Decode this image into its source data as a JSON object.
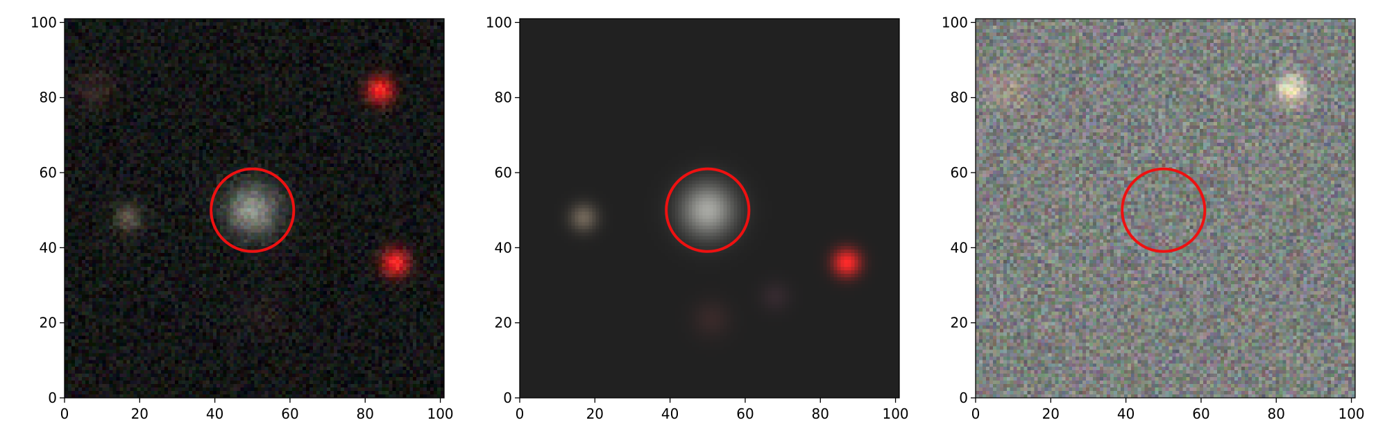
{
  "chart_data": [
    {
      "type": "image",
      "xlim": [
        0,
        101
      ],
      "ylim": [
        0,
        101
      ],
      "xticks": [
        0,
        20,
        40,
        60,
        80,
        100
      ],
      "yticks": [
        0,
        20,
        40,
        60,
        80,
        100
      ],
      "background": "#141616",
      "noise": "strong-color",
      "marker": {
        "shape": "circle",
        "x": 50,
        "y": 50,
        "radius": 11,
        "color": "#ee1111"
      },
      "sources": [
        {
          "x": 50,
          "y": 50,
          "sigma": 5,
          "color": "#a6aca2",
          "intensity": 0.85
        },
        {
          "x": 84,
          "y": 82,
          "sigma": 2.6,
          "color": "#ff2a2a",
          "intensity": 1.0
        },
        {
          "x": 88,
          "y": 36,
          "sigma": 2.6,
          "color": "#ff2a2a",
          "intensity": 1.0
        },
        {
          "x": 17,
          "y": 48,
          "sigma": 2.6,
          "color": "#9c8a70",
          "intensity": 0.6
        },
        {
          "x": 8,
          "y": 82,
          "sigma": 3.5,
          "color": "#6a4040",
          "intensity": 0.4
        },
        {
          "x": 52,
          "y": 22,
          "sigma": 4,
          "color": "#503030",
          "intensity": 0.3
        }
      ]
    },
    {
      "type": "image",
      "xlim": [
        0,
        101
      ],
      "ylim": [
        0,
        101
      ],
      "xticks": [
        0,
        20,
        40,
        60,
        80,
        100
      ],
      "yticks": [
        0,
        20,
        40,
        60,
        80,
        100
      ],
      "background": "#212121",
      "noise": "none",
      "marker": {
        "shape": "circle",
        "x": 50,
        "y": 50,
        "radius": 11,
        "color": "#ee1111"
      },
      "sources": [
        {
          "x": 50,
          "y": 50,
          "sigma": 5,
          "color": "#bfc0ba",
          "intensity": 0.85
        },
        {
          "x": 87,
          "y": 36,
          "sigma": 2.6,
          "color": "#ff2a2a",
          "intensity": 1.0
        },
        {
          "x": 17,
          "y": 48,
          "sigma": 2.6,
          "color": "#9a8a76",
          "intensity": 0.65
        },
        {
          "x": 51,
          "y": 21,
          "sigma": 3.5,
          "color": "#5a3636",
          "intensity": 0.4
        },
        {
          "x": 68,
          "y": 27,
          "sigma": 2.8,
          "color": "#583a48",
          "intensity": 0.35
        }
      ]
    },
    {
      "type": "image",
      "xlim": [
        0,
        101
      ],
      "ylim": [
        0,
        101
      ],
      "xticks": [
        0,
        20,
        40,
        60,
        80,
        100
      ],
      "yticks": [
        0,
        20,
        40,
        60,
        80,
        100
      ],
      "background": "#7e8280",
      "noise": "very-strong-color",
      "marker": {
        "shape": "circle",
        "x": 50,
        "y": 50,
        "radius": 11,
        "color": "#ee1111"
      },
      "sources": [
        {
          "x": 84,
          "y": 82,
          "sigma": 2.6,
          "color": "#fff0c8",
          "intensity": 1.0
        },
        {
          "x": 8,
          "y": 82,
          "sigma": 4,
          "color": "#c8a890",
          "intensity": 0.5
        }
      ]
    }
  ]
}
